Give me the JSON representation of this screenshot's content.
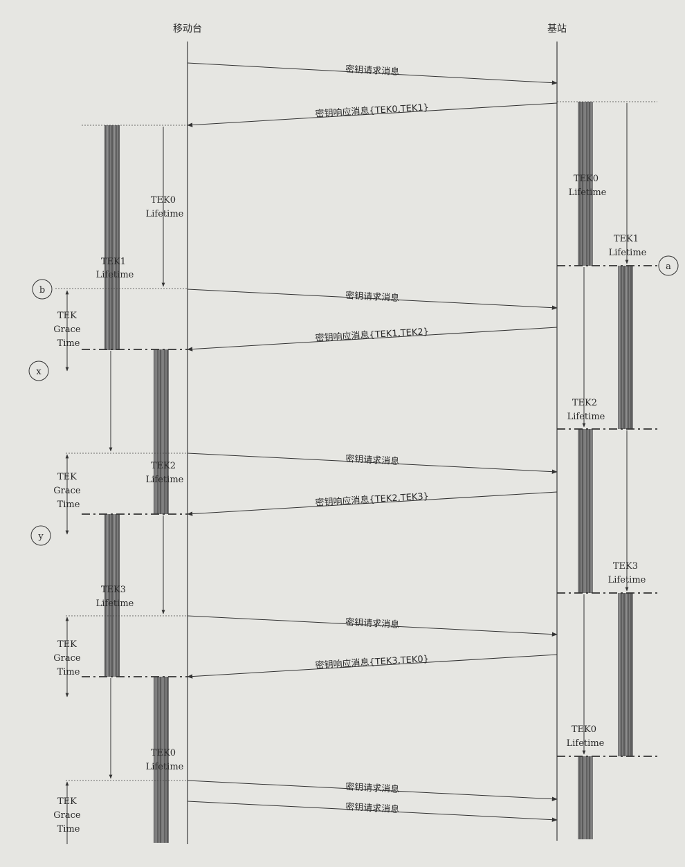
{
  "headers": {
    "mobile": "移动台",
    "base": "基站"
  },
  "messages": {
    "req": "密钥请求消息",
    "resp1": "密钥响应消息{TEK0,TEK1}",
    "resp2": "密钥响应消息{TEK1,TEK2}",
    "resp3": "密钥响应消息{TEK2,TEK3}",
    "resp4": "密钥响应消息{TEK3,TEK0}"
  },
  "lifetimes": {
    "ms_tek0_a": [
      "TEK0",
      "Lifetime"
    ],
    "ms_tek1": [
      "TEK1",
      "Lifetime"
    ],
    "ms_tek2": [
      "TEK2",
      "Lifetime"
    ],
    "ms_tek3": [
      "TEK3",
      "Lifetime"
    ],
    "ms_tek0_b": [
      "TEK0",
      "Lifetime"
    ],
    "bs_tek0": [
      "TEK0",
      "Lifetime"
    ],
    "bs_tek1": [
      "TEK1",
      "Lifetime"
    ],
    "bs_tek2": [
      "TEK2",
      "Lifetime"
    ],
    "bs_tek3": [
      "TEK3",
      "Lifetime"
    ],
    "bs_tek0_b": [
      "TEK0",
      "Lifetime"
    ]
  },
  "grace": [
    "TEK",
    "Grace",
    "Time"
  ],
  "markers": {
    "a": "a",
    "b": "b",
    "x": "x",
    "y": "y"
  },
  "colors": {
    "background": "#e6e6e2",
    "line": "#3a3a3a",
    "bar": "#6f6f6f"
  }
}
